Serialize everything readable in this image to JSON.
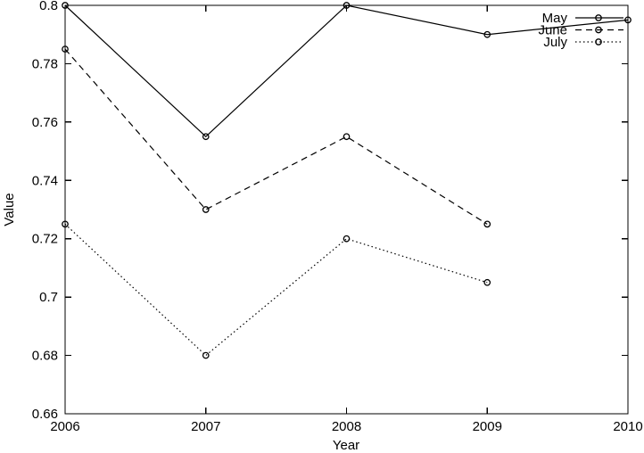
{
  "chart_data": {
    "type": "line",
    "title": "",
    "xlabel": "Year",
    "ylabel": "Value",
    "xlim": [
      2006,
      2010
    ],
    "ylim": [
      0.66,
      0.8
    ],
    "xticks": [
      2006,
      2007,
      2008,
      2009,
      2010
    ],
    "xtick_labels": [
      "2006",
      "2007",
      "2008",
      "2009",
      "2010"
    ],
    "yticks": [
      0.66,
      0.68,
      0.7,
      0.72,
      0.74,
      0.76,
      0.78,
      0.8
    ],
    "ytick_labels": [
      "0.66",
      "0.68",
      "0.7",
      "0.72",
      "0.74",
      "0.76",
      "0.78",
      "0.8"
    ],
    "grid": false,
    "marker": "open-circle",
    "line_color": "#000000",
    "background_color": "#ffffff",
    "legend": {
      "position": "top-right",
      "entries": [
        "May",
        "June",
        "July"
      ]
    },
    "series": [
      {
        "name": "May",
        "style": "solid",
        "x": [
          2006,
          2007,
          2008,
          2009,
          2010
        ],
        "values": [
          0.8,
          0.755,
          0.8,
          0.79,
          0.795
        ]
      },
      {
        "name": "June",
        "style": "dashed",
        "x": [
          2006,
          2007,
          2008,
          2009
        ],
        "values": [
          0.785,
          0.73,
          0.755,
          0.725
        ]
      },
      {
        "name": "July",
        "style": "dotted",
        "x": [
          2006,
          2007,
          2008,
          2009
        ],
        "values": [
          0.725,
          0.68,
          0.72,
          0.705
        ]
      }
    ]
  }
}
